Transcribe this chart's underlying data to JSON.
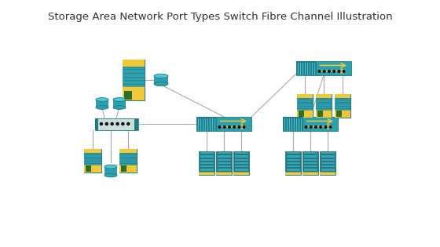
{
  "title": "Storage Area Network Port Types Switch Fibre Channel Illustration",
  "title_fontsize": 9.5,
  "bg_color": "#ffffff",
  "teal_dark": "#1f7a85",
  "teal_mid": "#2e9fad",
  "teal_light": "#4dc8d4",
  "yellow": "#f0c93a",
  "yellow2": "#e8c830",
  "green_dark": "#2d6e2d",
  "green_bright": "#4aaa3a",
  "line_color": "#aaaaaa",
  "text_color": "#333333"
}
